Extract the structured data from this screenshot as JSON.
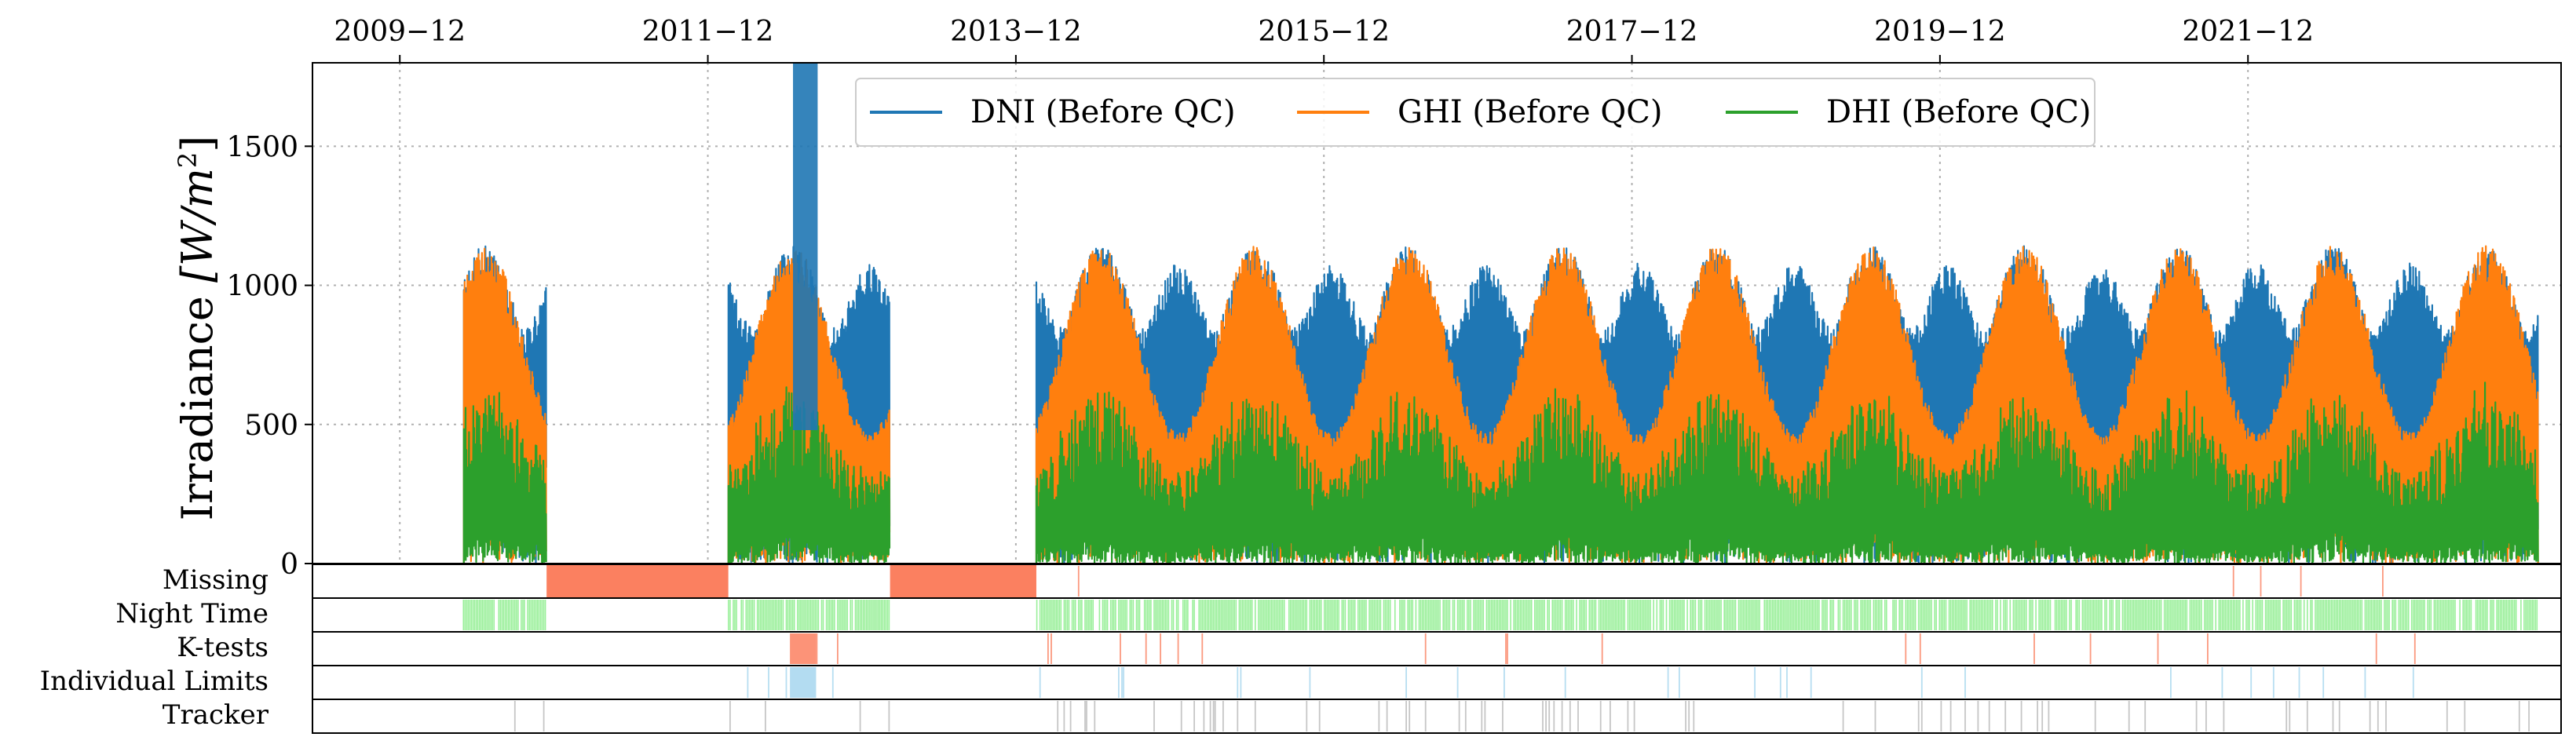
{
  "chart_data": {
    "type": "line",
    "title": "",
    "ylabel": "Irradiance [W/m²]",
    "ylabel_main": "Irradiance ",
    "ylabel_unit": "[W/m",
    "ylabel_sup": "2",
    "ylabel_close": "]",
    "ylim": [
      0,
      1800
    ],
    "yticks": [
      "0",
      "500",
      "1000",
      "1500"
    ],
    "ytick_values": [
      0,
      500,
      1000,
      1500
    ],
    "xlim": [
      2009.35,
      2023.95
    ],
    "xticks": [
      "2009−12",
      "2011−12",
      "2013−12",
      "2015−12",
      "2017−12",
      "2019−12",
      "2021−12"
    ],
    "xtick_values": [
      2009.917,
      2011.917,
      2013.917,
      2015.917,
      2017.917,
      2019.917,
      2021.917
    ],
    "grid": true,
    "legend_placement": "top-center",
    "series": [
      {
        "name": "DNI (Before QC)",
        "color": "#1f77b4"
      },
      {
        "name": "GHI (Before QC)",
        "color": "#ff7f0e"
      },
      {
        "name": "DHI (Before QC)",
        "color": "#2ca02c"
      }
    ],
    "data_periods": [
      {
        "start": 2010.33,
        "end": 2010.87
      },
      {
        "start": 2012.05,
        "end": 2013.1
      },
      {
        "start": 2014.05,
        "end": 2023.8
      }
    ],
    "dni_spike": {
      "start": 2012.47,
      "end": 2012.63,
      "value": 1800
    },
    "qc_flags": {
      "rows": [
        "Missing",
        "Night Time",
        "K-tests",
        "Individual Limits",
        "Tracker"
      ],
      "colors": [
        "#fb8060",
        "#90ee90",
        "#fb8060",
        "#a6d6ee",
        "#b8b8b8"
      ],
      "missing_blocks": [
        {
          "start": 2010.87,
          "end": 2012.05
        },
        {
          "start": 2013.1,
          "end": 2014.05
        }
      ]
    }
  }
}
